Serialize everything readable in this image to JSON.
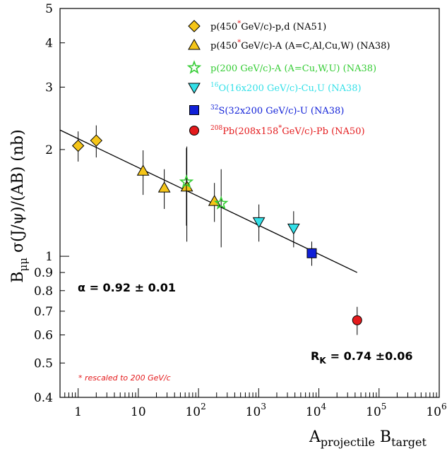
{
  "chart_data": {
    "type": "scatter",
    "x_scale": "log",
    "y_scale": "log",
    "xlim": [
      0.5,
      1000000
    ],
    "ylim": [
      0.4,
      5
    ],
    "x_ticks": [
      {
        "value": 1,
        "base": "1",
        "exp": ""
      },
      {
        "value": 10,
        "base": "10",
        "exp": ""
      },
      {
        "value": 100,
        "base": "10",
        "exp": "2"
      },
      {
        "value": 1000,
        "base": "10",
        "exp": "3"
      },
      {
        "value": 10000,
        "base": "10",
        "exp": "4"
      },
      {
        "value": 100000,
        "base": "10",
        "exp": "5"
      },
      {
        "value": 1000000,
        "base": "10",
        "exp": "6"
      }
    ],
    "y_ticks": [
      {
        "value": 0.4,
        "label": "0.4"
      },
      {
        "value": 0.5,
        "label": "0.5"
      },
      {
        "value": 0.6,
        "label": "0.6"
      },
      {
        "value": 0.7,
        "label": "0.7"
      },
      {
        "value": 0.8,
        "label": "0.8"
      },
      {
        "value": 0.9,
        "label": "0.9"
      },
      {
        "value": 1,
        "label": "1"
      },
      {
        "value": 2,
        "label": "2"
      },
      {
        "value": 3,
        "label": "3"
      },
      {
        "value": 4,
        "label": "4"
      },
      {
        "value": 5,
        "label": "5"
      }
    ],
    "xlabel": {
      "main": "A",
      "sub1": "projectile",
      "mid": " B",
      "sub2": "target"
    },
    "ylabel": {
      "pre": "B",
      "sub": "μμ",
      "post": " σ(J/ψ)/(AB) (nb)"
    },
    "series": [
      {
        "name_pre": "p(450",
        "star": "*",
        "name_post": "GeV/c)-p,d (NA51)",
        "marker": "diamond",
        "color": "#f5c518",
        "points": [
          {
            "x": 1,
            "y": 2.05,
            "err": 0.2
          },
          {
            "x": 2,
            "y": 2.12,
            "err": 0.22
          }
        ]
      },
      {
        "name_pre": "p(450",
        "star": "*",
        "name_post": "GeV/c)-A (A=C,Al,Cu,W) (NA38)",
        "marker": "triangle-up",
        "color": "#f5c518",
        "points": [
          {
            "x": 12,
            "y": 1.74,
            "err": 0.25
          },
          {
            "x": 27,
            "y": 1.56,
            "err": 0.2
          },
          {
            "x": 64,
            "y": 1.57,
            "err": 0.47
          },
          {
            "x": 184,
            "y": 1.43,
            "err": 0.18
          }
        ]
      },
      {
        "name_pre": "p(200 GeV/c)-A (A=Cu,W,U) (NA38)",
        "star": "",
        "name_post": "",
        "marker": "star",
        "color": "#33cc33",
        "points": [
          {
            "x": 63,
            "y": 1.62,
            "err": 0.4
          },
          {
            "x": 238,
            "y": 1.41,
            "err": 0.35
          }
        ]
      },
      {
        "name_pre": "16",
        "star": "",
        "name_post": "O(16x200 GeV/c)-Cu,U (NA38)",
        "pre_is_sup": true,
        "marker": "triangle-down",
        "color": "#33e0e8",
        "points": [
          {
            "x": 1008,
            "y": 1.25,
            "err": 0.15
          },
          {
            "x": 3808,
            "y": 1.2,
            "err": 0.14
          }
        ]
      },
      {
        "name_pre": "32",
        "star": "",
        "name_post": "S(32x200 GeV/c)-U (NA38)",
        "pre_is_sup": true,
        "marker": "square",
        "color": "#1020d8",
        "points": [
          {
            "x": 7616,
            "y": 1.02,
            "err": 0.08
          }
        ]
      },
      {
        "name_pre": "208",
        "star": "*",
        "name_post": "GeV/c)-Pb (NA50)",
        "mid": "Pb(208x158",
        "pre_is_sup": true,
        "marker": "circle",
        "color": "#e41a1c",
        "points": [
          {
            "x": 43264,
            "y": 0.66,
            "err": 0.06
          }
        ]
      }
    ],
    "fit": {
      "x": [
        0.5,
        43264
      ],
      "y": [
        2.27,
        0.9
      ]
    },
    "annotations": {
      "alpha": "α = 0.92 ± 0.01",
      "rk_main": "R",
      "rk_sub": "K",
      "rk_value": "=  0.74 ±0.06",
      "footnote": "*  rescaled to 200 GeV/c"
    },
    "legend_placement": "top-right",
    "grid": false
  }
}
